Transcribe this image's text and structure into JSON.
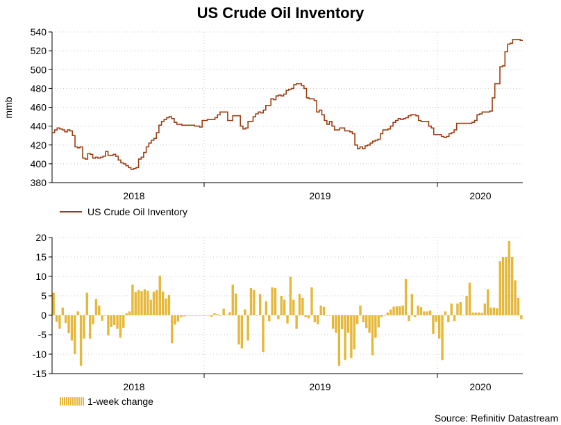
{
  "chart_data": [
    {
      "type": "line",
      "title": "US Crude Oil Inventory",
      "ylabel": "mmb",
      "ylim": [
        380,
        540
      ],
      "yticks": [
        "380",
        "400",
        "420",
        "440",
        "460",
        "480",
        "500",
        "520",
        "540"
      ],
      "x_ticks": [
        "2018",
        "2019",
        "2020"
      ],
      "series": [
        {
          "name": "US Crude Oil Inventory",
          "color": "#9b3d12",
          "values": [
            433,
            436,
            438,
            437,
            436,
            434,
            436,
            435,
            430,
            418,
            417,
            418,
            406,
            405,
            411,
            410,
            406,
            407,
            406,
            407,
            408,
            413,
            409,
            409,
            410,
            408,
            404,
            401,
            400,
            398,
            396,
            394,
            395,
            396,
            405,
            407,
            412,
            418,
            422,
            425,
            427,
            433,
            441,
            445,
            447,
            449,
            450,
            448,
            444,
            442,
            442,
            441,
            441,
            441,
            441,
            441,
            440,
            440,
            439,
            446,
            446,
            447,
            447,
            447,
            449,
            452,
            455,
            455,
            455,
            446,
            446,
            451,
            451,
            451,
            440,
            437,
            438,
            445,
            445,
            450,
            453,
            455,
            454,
            457,
            462,
            462,
            469,
            468,
            472,
            473,
            472,
            474,
            478,
            479,
            480,
            484,
            485,
            485,
            483,
            480,
            470,
            469,
            469,
            467,
            455,
            457,
            452,
            446,
            442,
            445,
            440,
            436,
            436,
            438,
            438,
            435,
            435,
            434,
            432,
            420,
            416,
            418,
            416,
            419,
            420,
            422,
            424,
            425,
            426,
            432,
            436,
            436,
            437,
            440,
            444,
            446,
            448,
            447,
            448,
            449,
            451,
            452,
            452,
            451,
            446,
            445,
            445,
            445,
            440,
            438,
            431,
            431,
            431,
            429,
            428,
            429,
            432,
            433,
            436,
            443,
            443,
            443,
            443,
            443,
            443,
            444,
            446,
            452,
            453,
            455,
            455,
            455,
            456,
            470,
            485,
            485,
            503,
            504,
            519,
            527,
            528,
            532,
            532,
            532,
            531
          ]
        }
      ]
    },
    {
      "type": "bar",
      "ylim": [
        -15,
        20
      ],
      "yticks": [
        "-15",
        "-10",
        "-5",
        "0",
        "5",
        "10",
        "15",
        "20"
      ],
      "x_ticks": [
        "2018",
        "2019",
        "2020"
      ],
      "series": [
        {
          "name": "1-week change",
          "color": "#e6b83a",
          "values": [
            5.8,
            -1.7,
            -3.5,
            2,
            -2,
            -4.6,
            -6.5,
            -10,
            1,
            -13,
            -6,
            5.8,
            -6,
            -2.3,
            4.2,
            2.5,
            -1.4,
            0,
            -5.2,
            -3,
            -2.5,
            -3.5,
            -5.8,
            -3.2,
            0.5,
            1,
            7.9,
            6,
            6.5,
            6.2,
            6.7,
            6.3,
            4,
            6.1,
            6.5,
            10.2,
            6.1,
            4.3,
            5.2,
            -7.2,
            -2.4,
            -1.6,
            -0.5,
            -0.3,
            0,
            0,
            0,
            0,
            0,
            0,
            0,
            0,
            -0.4,
            0.5,
            0.3,
            0,
            1.7,
            0.1,
            0.8,
            7.9,
            5.6,
            -7.5,
            -8.5,
            1.5,
            -6.5,
            7,
            6.5,
            -0.1,
            5.5,
            -9.5,
            3.6,
            -1.5,
            7.2,
            7,
            -1,
            5,
            4,
            -2.1,
            9.9,
            4,
            -3.5,
            5.5,
            4.5,
            -0.5,
            -0.8,
            7.2,
            -1.8,
            -2.3,
            2.5,
            2.2,
            0,
            0,
            -3.5,
            -4.5,
            -13,
            -3.6,
            -11.5,
            -4.5,
            -11,
            -8.8,
            -2.3,
            2.5,
            -1.8,
            -3.3,
            -4.5,
            -10.3,
            -5.8,
            -3.1,
            -0.5,
            0,
            0.7,
            1.5,
            2.2,
            2.3,
            2.3,
            2.5,
            9.3,
            -1.5,
            5.5,
            -0.5,
            2.5,
            2.1,
            1,
            1,
            1.2,
            -4.8,
            -1.7,
            -6,
            -11.5,
            1,
            -1.8,
            3,
            -1.5,
            3,
            3.4,
            0,
            5,
            8.4,
            0.7,
            0.7,
            0.7,
            0.6,
            3,
            6.7,
            2,
            2,
            1.8,
            13.9,
            15,
            15,
            19.1,
            15,
            9,
            4.5,
            -1
          ]
        }
      ]
    }
  ],
  "legend": {
    "line_label": "US Crude Oil Inventory",
    "bar_label": "1-week change"
  },
  "source": "Source: Refinitiv Datastream"
}
